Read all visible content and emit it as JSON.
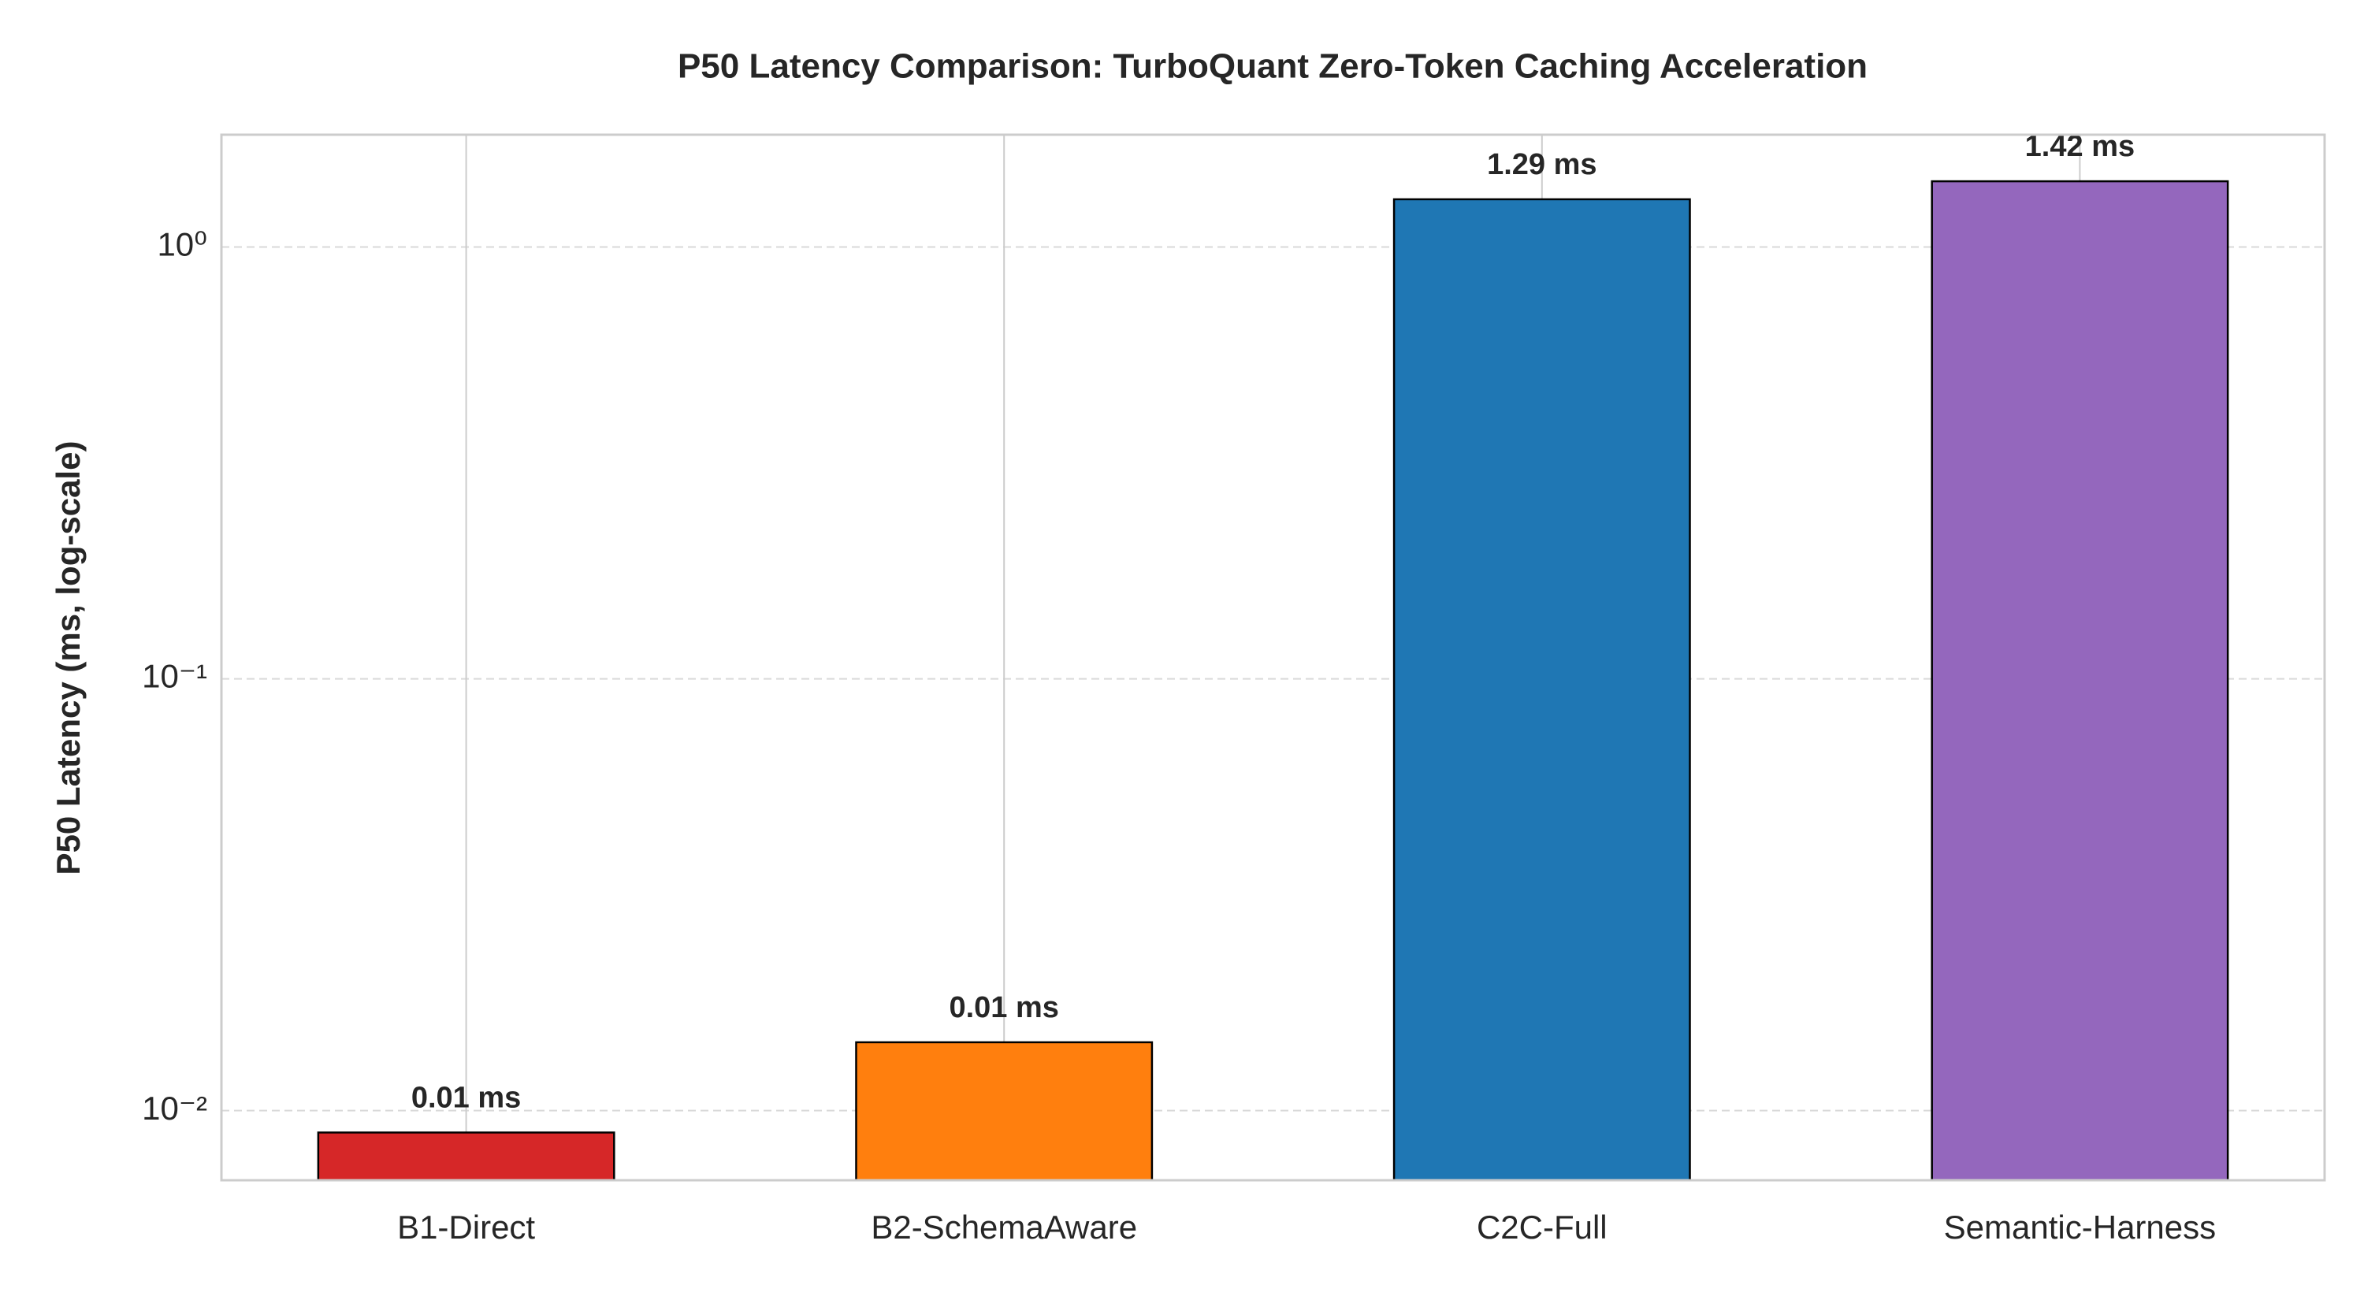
{
  "chart_data": {
    "type": "bar",
    "title": "P50 Latency Comparison: TurboQuant Zero-Token Caching Acceleration",
    "ylabel": "P50 Latency (ms, log-scale)",
    "categories": [
      "B1-Direct",
      "B2-SchemaAware",
      "C2C-Full",
      "Semantic-Harness"
    ],
    "values": [
      0.0089,
      0.0144,
      1.29,
      1.42
    ],
    "value_labels": [
      "0.01 ms",
      "0.01 ms",
      "1.29 ms",
      "1.42 ms"
    ],
    "colors": [
      "#d62728",
      "#ff7f0e",
      "#1f77b4",
      "#9467bd"
    ],
    "ylim": [
      0.0069,
      1.82
    ],
    "yticks": [
      {
        "value": 0.01,
        "label": "10⁻²"
      },
      {
        "value": 0.1,
        "label": "10⁻¹"
      },
      {
        "value": 1,
        "label": "10⁰"
      }
    ],
    "log_scale": true,
    "grid": true
  }
}
